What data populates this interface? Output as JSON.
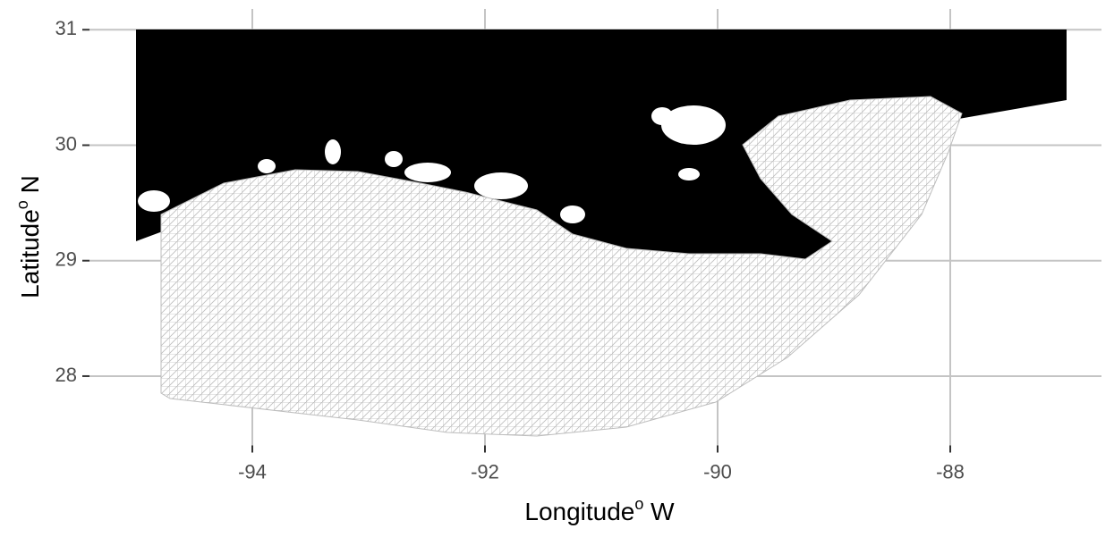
{
  "chart_data": {
    "type": "map",
    "xlabel": {
      "text": "Longitude",
      "sup": "o",
      "suffix": " W"
    },
    "ylabel": {
      "text": "Latitude",
      "sup": "o",
      "suffix": " N"
    },
    "xlim": [
      -95.4,
      -86.7
    ],
    "ylim": [
      27.4,
      31.18
    ],
    "xticks": [
      -94,
      -92,
      -90,
      -88
    ],
    "yticks": [
      28,
      29,
      30,
      31
    ],
    "grid": true
  }
}
